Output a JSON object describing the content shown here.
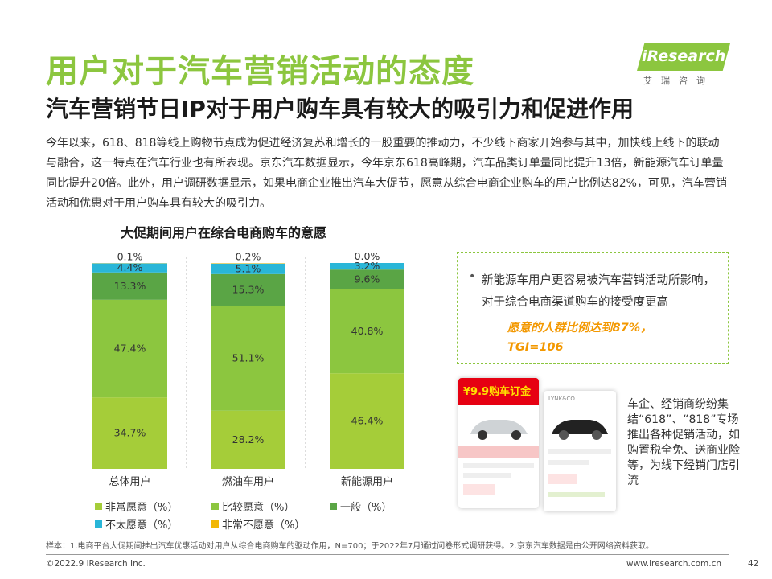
{
  "header": {
    "title": "用户对于汽车营销活动的态度",
    "subtitle": "汽车营销节日IP对于用户购车具有较大的吸引力和促进作用",
    "logo": "iResearch",
    "logo_sub": "艾瑞咨询",
    "brand_color": "#8cc63f"
  },
  "intro": {
    "text": "今年以来，618、818等线上购物节点成为促进经济复苏和增长的一股重要的推动力，不少线下商家开始参与其中，加快线上线下的联动与融合，这一特点在汽车行业也有所表现。京东汽车数据显示，今年京东618高峰期，汽车品类订单量同比提升13倍，新能源汽车订单量同比提升20倍。此外，用户调研数据显示，如果电商企业推出汽车大促节，愿意从综合电商企业购车的用户比例达82%，可见，汽车营销活动和优惠对于用户购车具有较大的吸引力。"
  },
  "chart_data": {
    "type": "bar",
    "stacked": true,
    "title": "大促期间用户在综合电商购车的意愿",
    "categories": [
      "总体用户",
      "燃油车用户",
      "新能源用户"
    ],
    "series": [
      {
        "name": "非常愿意（%）",
        "color": "#a5cd39",
        "values": [
          34.7,
          28.2,
          46.4
        ],
        "labels": [
          "34.7%",
          "28.2%",
          "46.4%"
        ]
      },
      {
        "name": "比较愿意（%）",
        "color": "#8cc63f",
        "values": [
          47.4,
          51.1,
          40.8
        ],
        "labels": [
          "47.4%",
          "51.1%",
          "40.8%"
        ]
      },
      {
        "name": "一般（%）",
        "color": "#5aa545",
        "values": [
          13.3,
          15.3,
          9.6
        ],
        "labels": [
          "13.3%",
          "15.3%",
          "9.6%"
        ]
      },
      {
        "name": "不太愿意（%）",
        "color": "#29b6d8",
        "values": [
          4.4,
          5.1,
          3.2
        ],
        "labels": [
          "4.4%",
          "5.1%",
          "3.2%"
        ]
      },
      {
        "name": "非常不愿意（%）",
        "color": "#f2b705",
        "values": [
          0.1,
          0.2,
          0.0
        ],
        "labels": [
          "0.1%",
          "0.2%",
          "0.0%"
        ]
      }
    ],
    "ylim": [
      0,
      100
    ],
    "grid": false,
    "legend": "bottom"
  },
  "note": {
    "bullet": "•",
    "text": "新能源车用户更容易被汽车营销活动所影响，对于综合电商渠道购车的接受度更高",
    "highlight_1": "愿意的人群比例达到87%，",
    "highlight_2": "TGI=106",
    "highlight_color": "#f39800"
  },
  "ad": {
    "phone1_banner": "¥9.9购车订金",
    "phone2_banner": "LYNK&CO",
    "side_text": "车企、经销商纷纷集结“618”、“818”专场推出各种促销活动，如购置税全免、送商业险等，为线下经销门店引流"
  },
  "footer": {
    "footnote": "样本：1.电商平台大促期间推出汽车优惠活动对用户从综合电商购车的驱动作用，N=700；于2022年7月通过问卷形式调研获得。2.京东汽车数据是由公开网络资料获取。",
    "copyright": "©2022.9 iResearch Inc.",
    "website": "www.iresearch.com.cn",
    "page": "42"
  }
}
